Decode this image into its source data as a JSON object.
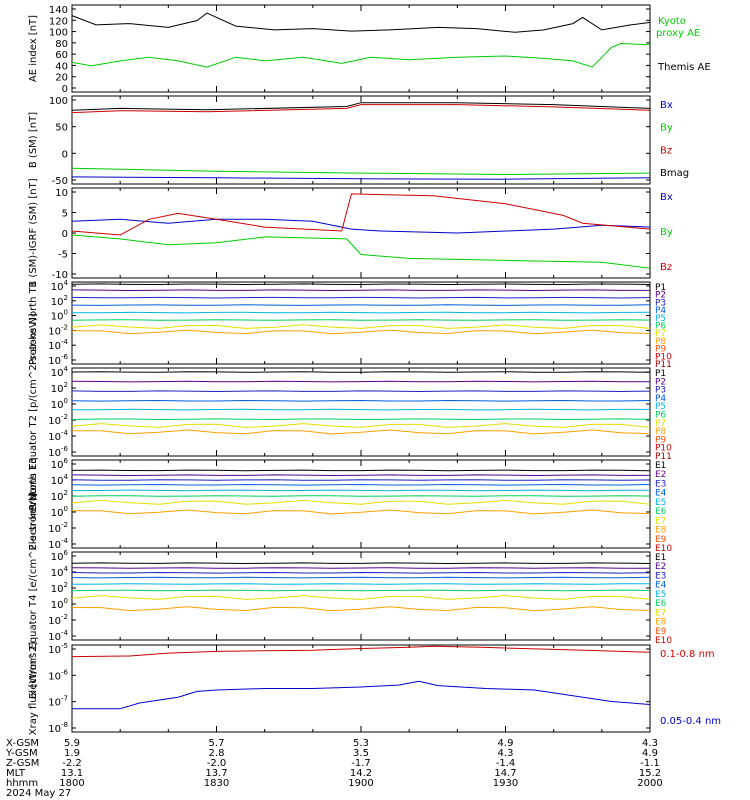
{
  "chart_data": [
    {
      "type": "line",
      "ylabel": "AE index [nT]",
      "yticks": [
        "140",
        "120",
        "100",
        "80",
        "60",
        "40",
        "20",
        "0"
      ],
      "ylim": [
        0,
        140
      ],
      "x": [
        0,
        30,
        60,
        90,
        120
      ],
      "series": [
        {
          "name": "Kyoto proxy AE",
          "color": "#00cc00",
          "points": [
            [
              0,
              48
            ],
            [
              4,
              42
            ],
            [
              10,
              50
            ],
            [
              16,
              56
            ],
            [
              22,
              50
            ],
            [
              28,
              40
            ],
            [
              34,
              56
            ],
            [
              40,
              50
            ],
            [
              48,
              56
            ],
            [
              56,
              46
            ],
            [
              62,
              56
            ],
            [
              70,
              52
            ],
            [
              80,
              56
            ],
            [
              90,
              58
            ],
            [
              98,
              54
            ],
            [
              104,
              50
            ],
            [
              108,
              40
            ],
            [
              112,
              72
            ],
            [
              114,
              78
            ],
            [
              120,
              76
            ]
          ]
        },
        {
          "name": "Themis AE",
          "color": "#000000",
          "points": [
            [
              0,
              123
            ],
            [
              5,
              108
            ],
            [
              12,
              110
            ],
            [
              20,
              104
            ],
            [
              26,
              115
            ],
            [
              28,
              127
            ],
            [
              34,
              106
            ],
            [
              42,
              100
            ],
            [
              50,
              102
            ],
            [
              58,
              98
            ],
            [
              66,
              100
            ],
            [
              76,
              104
            ],
            [
              84,
              102
            ],
            [
              92,
              96
            ],
            [
              98,
              100
            ],
            [
              104,
              110
            ],
            [
              106,
              120
            ],
            [
              110,
              100
            ],
            [
              116,
              108
            ],
            [
              120,
              112
            ]
          ]
        }
      ]
    },
    {
      "type": "line",
      "ylabel": "B (SM) [nT]",
      "yticks": [
        "100",
        "50",
        "0",
        "-50"
      ],
      "ylim": [
        -55,
        130
      ],
      "series": [
        {
          "name": "Bx",
          "color": "#0000cc",
          "points": [
            [
              0,
              -40
            ],
            [
              30,
              -42
            ],
            [
              60,
              -44
            ],
            [
              90,
              -45
            ],
            [
              120,
              -42
            ]
          ]
        },
        {
          "name": "By",
          "color": "#00cc00",
          "points": [
            [
              0,
              -22
            ],
            [
              30,
              -28
            ],
            [
              60,
              -32
            ],
            [
              90,
              -35
            ],
            [
              120,
              -32
            ]
          ]
        },
        {
          "name": "Bz",
          "color": "#cc0000",
          "points": [
            [
              0,
              95
            ],
            [
              10,
              99
            ],
            [
              28,
              97
            ],
            [
              57,
              104
            ],
            [
              60,
              112
            ],
            [
              80,
              112
            ],
            [
              100,
              107
            ],
            [
              120,
              100
            ]
          ]
        },
        {
          "name": "Bmag",
          "color": "#000000",
          "points": [
            [
              0,
              100
            ],
            [
              10,
              104
            ],
            [
              28,
              101
            ],
            [
              57,
              108
            ],
            [
              60,
              116
            ],
            [
              80,
              116
            ],
            [
              100,
              112
            ],
            [
              120,
              104
            ]
          ]
        }
      ]
    },
    {
      "type": "line",
      "ylabel": "B (SM)-IGRF (SM) [nT]",
      "yticks": [
        "10",
        "5",
        "0",
        "-5",
        "-10"
      ],
      "ylim": [
        -12,
        11
      ],
      "series": [
        {
          "name": "Bx",
          "color": "#0000cc",
          "points": [
            [
              0,
              2.5
            ],
            [
              10,
              3
            ],
            [
              20,
              2
            ],
            [
              30,
              3
            ],
            [
              40,
              3
            ],
            [
              50,
              2.5
            ],
            [
              58,
              0.5
            ],
            [
              64,
              0
            ],
            [
              80,
              -0.5
            ],
            [
              100,
              0.5
            ],
            [
              110,
              1.5
            ],
            [
              120,
              1
            ]
          ]
        },
        {
          "name": "By",
          "color": "#00cc00",
          "points": [
            [
              0,
              -1
            ],
            [
              10,
              -2
            ],
            [
              20,
              -3.5
            ],
            [
              30,
              -3
            ],
            [
              40,
              -1.5
            ],
            [
              57,
              -2
            ],
            [
              60,
              -6
            ],
            [
              70,
              -7
            ],
            [
              90,
              -7.5
            ],
            [
              110,
              -8
            ],
            [
              120,
              -9.5
            ]
          ]
        },
        {
          "name": "Bz",
          "color": "#cc0000",
          "points": [
            [
              0,
              0
            ],
            [
              10,
              -1
            ],
            [
              16,
              3
            ],
            [
              22,
              4.5
            ],
            [
              30,
              3
            ],
            [
              40,
              1
            ],
            [
              56,
              0
            ],
            [
              58,
              9.5
            ],
            [
              75,
              9
            ],
            [
              90,
              7
            ],
            [
              102,
              4
            ],
            [
              106,
              2
            ],
            [
              120,
              0.5
            ]
          ]
        }
      ]
    },
    {
      "type": "line",
      "ylabel": "Protons North T1",
      "yticks": [
        "10^4",
        "10^2",
        "10^0",
        "10^-2",
        "10^-4",
        "10^-6"
      ],
      "ylim": [
        -7,
        4
      ],
      "legend": [
        "P1",
        "P2",
        "P3",
        "P4",
        "P5",
        "P6",
        "P7",
        "P8",
        "P9",
        "P10",
        "P11"
      ],
      "levels": [
        3.7,
        2.9,
        1.9,
        0.9,
        -0.1,
        -1.1,
        -2,
        -2.7
      ],
      "colors": [
        "#000000",
        "#5a0090",
        "#2020c0",
        "#0060e0",
        "#00b4e8",
        "#00d060",
        "#e0e000",
        "#ffa000",
        "#ff5000",
        "#dd0000",
        "#aa0000"
      ]
    },
    {
      "type": "line",
      "ylabel": "Protons Equator T2 [p/(cm^2-s-sr-keV)]",
      "yticks": [
        "10^4",
        "10^2",
        "10^0",
        "10^-2",
        "10^-4",
        "10^-6"
      ],
      "ylim": [
        -7,
        4
      ],
      "legend": [
        "P1",
        "P2",
        "P3",
        "P4",
        "P5",
        "P6",
        "P7",
        "P8",
        "P9",
        "P10",
        "P11"
      ],
      "levels": [
        3.5,
        2.3,
        1.1,
        -0.1,
        -1.2,
        -2.4,
        -3.2,
        -4.0
      ],
      "colors": [
        "#000000",
        "#5a0090",
        "#2020c0",
        "#0060e0",
        "#00b4e8",
        "#00d060",
        "#e0e000",
        "#ffa000",
        "#ff5000",
        "#dd0000",
        "#aa0000"
      ]
    },
    {
      "type": "line",
      "ylabel": "Electrons North T3",
      "yticks": [
        "10^6",
        "10^4",
        "10^2",
        "10^0",
        "10^-2",
        "10^-4"
      ],
      "ylim": [
        -5,
        6
      ],
      "legend": [
        "E1",
        "E2",
        "E3",
        "E4",
        "E5",
        "E6",
        "E7",
        "E8",
        "E9",
        "E10"
      ],
      "levels": [
        4.7,
        4.1,
        3.5,
        2.9,
        2.2,
        1.5,
        0.7,
        -0.5
      ],
      "colors": [
        "#000000",
        "#5a0090",
        "#2020c0",
        "#0060e0",
        "#00b4e8",
        "#00d060",
        "#e0e000",
        "#ffa000",
        "#ff5000",
        "#cc0000"
      ]
    },
    {
      "type": "line",
      "ylabel": "Electrons Equator T4 [e/(cm^2-s-sr-keV)]",
      "yticks": [
        "10^6",
        "10^4",
        "10^2",
        "10^0",
        "10^-2",
        "10^-4"
      ],
      "ylim": [
        -5,
        6
      ],
      "legend": [
        "E1",
        "E2",
        "E3",
        "E4",
        "E5",
        "E6",
        "E7",
        "E8",
        "E9",
        "E10"
      ],
      "levels": [
        4.6,
        4.0,
        3.4,
        2.8,
        2.0,
        1.2,
        0.3,
        -1.1
      ],
      "colors": [
        "#000000",
        "#5a0090",
        "#2020c0",
        "#0060e0",
        "#00b4e8",
        "#00d060",
        "#e0e000",
        "#ffa000",
        "#ff5000",
        "#cc0000"
      ]
    },
    {
      "type": "line",
      "ylabel": "Xray flux [W/m^2]",
      "yticks": [
        "10^-5",
        "10^-6",
        "10^-7",
        "10^-8"
      ],
      "ylim": [
        -8,
        -5
      ],
      "series": [
        {
          "name": "0.1-0.8 nm",
          "color": "#cc0000",
          "points": [
            [
              0,
              -5.4
            ],
            [
              12,
              -5.38
            ],
            [
              20,
              -5.28
            ],
            [
              30,
              -5.22
            ],
            [
              40,
              -5.2
            ],
            [
              50,
              -5.18
            ],
            [
              60,
              -5.12
            ],
            [
              70,
              -5.08
            ],
            [
              75,
              -5.04
            ],
            [
              85,
              -5.08
            ],
            [
              100,
              -5.15
            ],
            [
              110,
              -5.2
            ],
            [
              120,
              -5.25
            ]
          ]
        },
        {
          "name": "0.05-0.4 nm",
          "color": "#0000cc",
          "points": [
            [
              0,
              -7.2
            ],
            [
              10,
              -7.2
            ],
            [
              14,
              -7.0
            ],
            [
              22,
              -6.8
            ],
            [
              26,
              -6.6
            ],
            [
              30,
              -6.55
            ],
            [
              40,
              -6.5
            ],
            [
              50,
              -6.5
            ],
            [
              60,
              -6.45
            ],
            [
              68,
              -6.38
            ],
            [
              72,
              -6.25
            ],
            [
              76,
              -6.4
            ],
            [
              86,
              -6.5
            ],
            [
              96,
              -6.55
            ],
            [
              104,
              -6.75
            ],
            [
              112,
              -6.95
            ],
            [
              120,
              -7.05
            ]
          ]
        }
      ]
    }
  ],
  "footer": {
    "rows": [
      {
        "label": "X-GSM",
        "values": [
          "5.9",
          "5.7",
          "5.3",
          "4.9",
          "4.3"
        ]
      },
      {
        "label": "Y-GSM",
        "values": [
          "1.9",
          "2.8",
          "3.5",
          "4.3",
          "4.9"
        ]
      },
      {
        "label": "Z-GSM",
        "values": [
          "-2.2",
          "-2.0",
          "-1.7",
          "-1.4",
          "-1.1"
        ]
      },
      {
        "label": "MLT",
        "values": [
          "13.1",
          "13.7",
          "14.2",
          "14.7",
          "15.2"
        ]
      },
      {
        "label": "hhmm",
        "values": [
          "1800",
          "1830",
          "1900",
          "1930",
          "2000"
        ]
      }
    ],
    "date": "2024 May 27"
  }
}
